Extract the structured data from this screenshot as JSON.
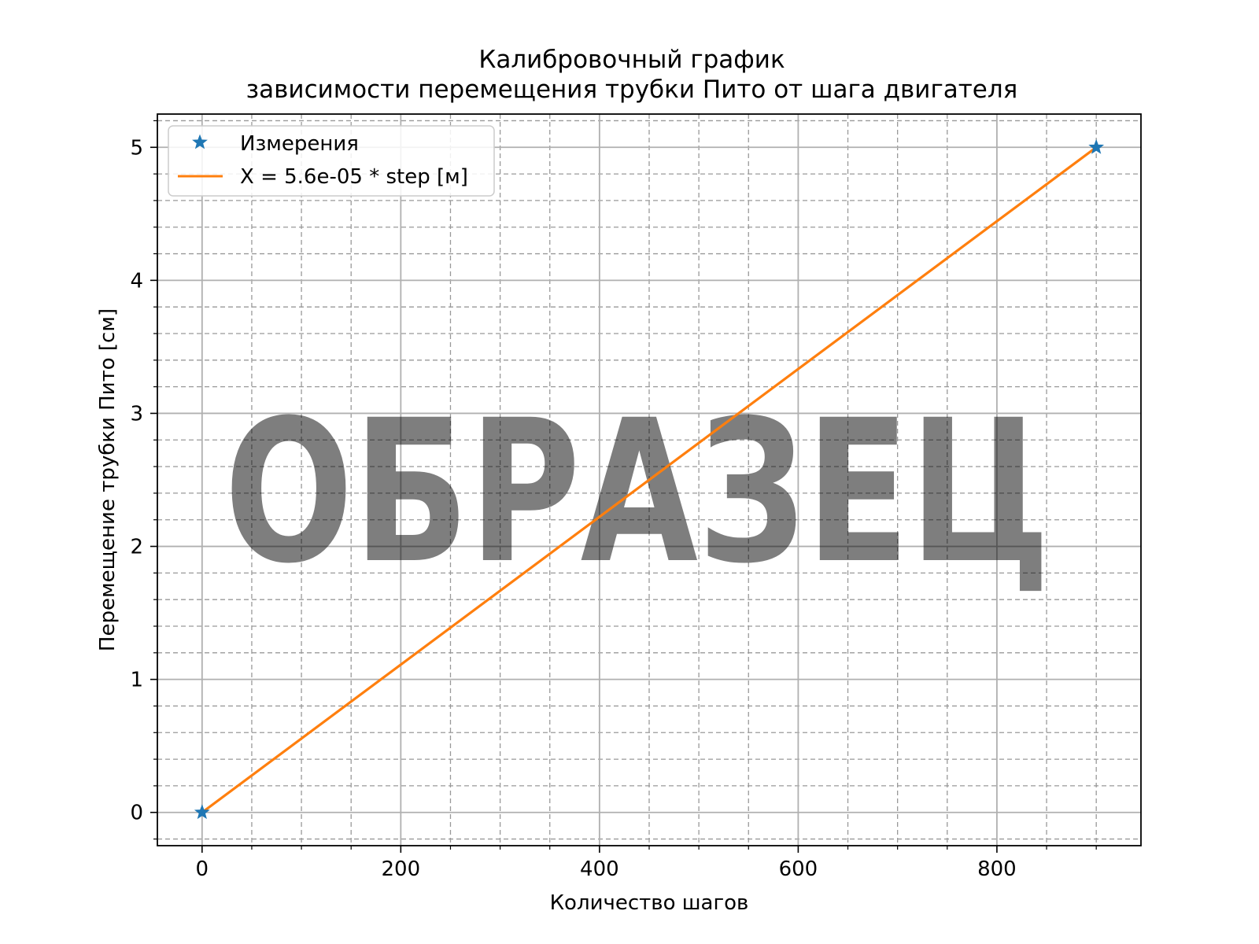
{
  "chart_data": {
    "type": "line",
    "title_line1": "Калибровочный график",
    "title_line2": "зависимости перемещения трубки Пито от шага двигателя",
    "xlabel": "Количество шагов",
    "ylabel": "Перемещение трубки Пито [см]",
    "xlim": [
      -45,
      945
    ],
    "ylim": [
      -0.25,
      5.25
    ],
    "x_ticks": [
      0,
      200,
      400,
      600,
      800
    ],
    "x_tick_labels": [
      "0",
      "200",
      "400",
      "600",
      "800"
    ],
    "y_ticks": [
      0,
      1,
      2,
      3,
      4,
      5
    ],
    "y_tick_labels": [
      "0",
      "1",
      "2",
      "3",
      "4",
      "5"
    ],
    "x_minor_step": 50,
    "y_minor_step": 0.2,
    "grid": true,
    "legend_position": "top-left",
    "series": [
      {
        "name": "Измерения",
        "kind": "markers",
        "marker": "star",
        "color": "#1f77b4",
        "x": [
          0,
          900
        ],
        "y": [
          0,
          5
        ]
      },
      {
        "name": "X = 5.6e-05 * step [м]",
        "kind": "line",
        "color": "#ff7f0e",
        "x": [
          0,
          900
        ],
        "y": [
          0,
          5
        ]
      }
    ]
  },
  "watermark": {
    "text": "ОБРАЗЕЦ"
  }
}
